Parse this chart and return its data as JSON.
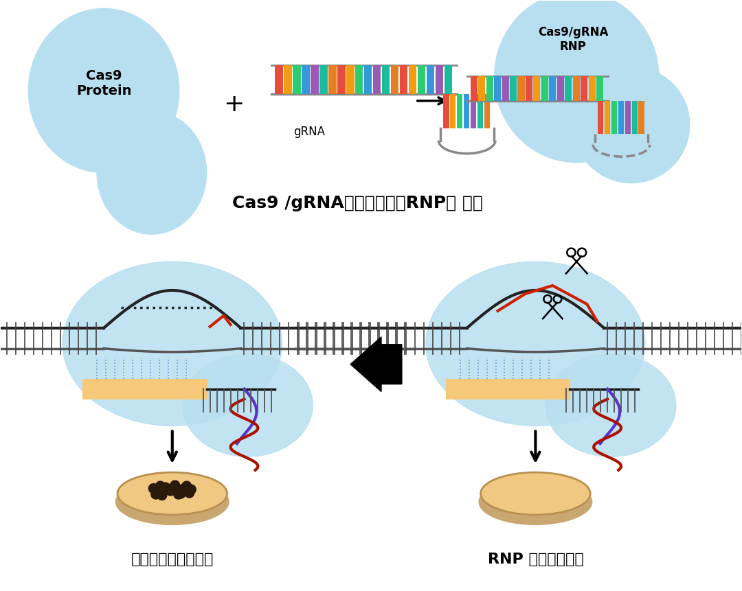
{
  "bg_color": "#ffffff",
  "light_blue": "#b8dff0",
  "title_top": "Cas9 /gRNA核糖核蛋白（RNP） 制备",
  "label_cas9": "Cas9\nProtein",
  "label_grna": "gRNA",
  "label_rnp": "Cas9/gRNA\nRNP",
  "label_left_bottom": "基因编辑单克隆分离",
  "label_right_bottom": "RNP 转染目的细胞",
  "colors_full": [
    "#e74c3c",
    "#f39c12",
    "#2ecc71",
    "#3498db",
    "#9b59b6",
    "#1abc9c",
    "#e67e22",
    "#e74c3c",
    "#f39c12",
    "#2ecc71",
    "#3498db",
    "#9b59b6",
    "#1abc9c",
    "#e67e22",
    "#e74c3c",
    "#f39c12",
    "#2ecc71",
    "#3498db",
    "#9b59b6",
    "#1abc9c",
    "#e67e22"
  ]
}
